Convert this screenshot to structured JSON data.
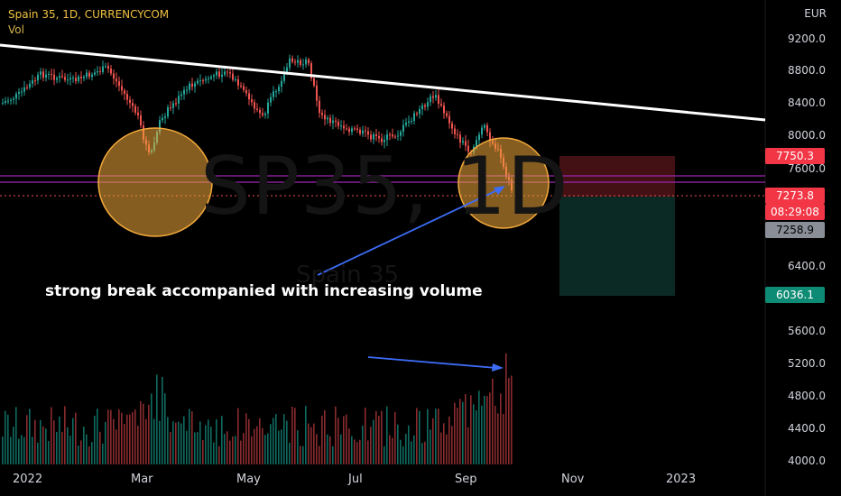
{
  "header": {
    "symbol_line": "Spain 35, 1D, CURRENCYCOM",
    "volume_label": "Vol"
  },
  "watermark": {
    "symbol": "SP35, 1D",
    "name": "Spain 35"
  },
  "annotation": {
    "text": "strong break accompanied with increasing volume"
  },
  "price_axis": {
    "currency": "EUR",
    "ticks": [
      "9200.0",
      "8800.0",
      "8400.0",
      "8000.0",
      "7600.0",
      "6400.0",
      "5600.0",
      "5200.0",
      "4800.0",
      "4400.0",
      "4000.0"
    ]
  },
  "badges": {
    "stop": "7750.3",
    "current_price": "7273.8",
    "countdown": "08:29:08",
    "entry": "7258.9",
    "target": "6036.1"
  },
  "time_axis": {
    "labels": [
      "2022",
      "Mar",
      "May",
      "Jul",
      "Sep",
      "Nov",
      "2023"
    ]
  },
  "colors": {
    "up": "#26a69a",
    "down": "#ef5350",
    "trendline": "#ffffff",
    "support": "#9c27b0",
    "circle_fill": "#f2a93b",
    "arrow": "#3d6cf5"
  }
}
